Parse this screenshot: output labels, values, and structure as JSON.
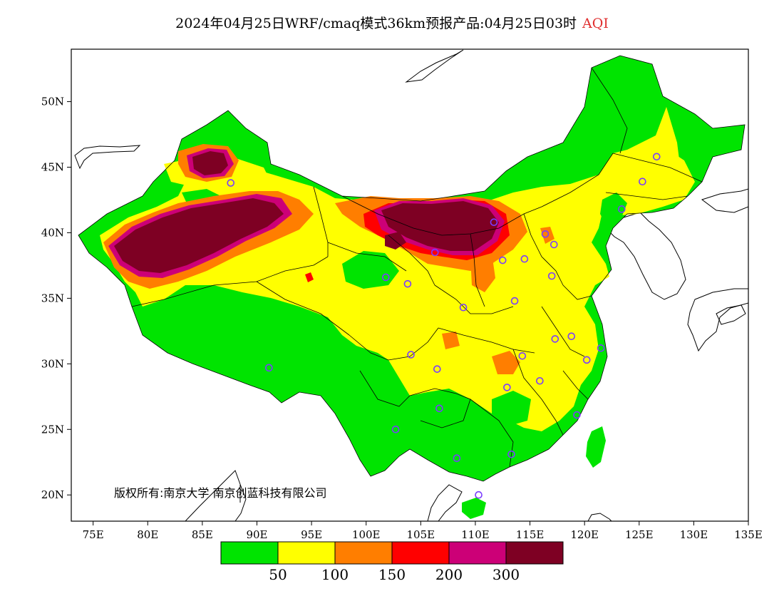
{
  "title": {
    "main": "2024年04月25日WRF/cmaq模式36km预报产品:04月25日03时",
    "variable": "AQI"
  },
  "map": {
    "lon_range": [
      73,
      135
    ],
    "lat_range": [
      18,
      54
    ],
    "lon_ticks": [
      {
        "value": 75,
        "label": "75E"
      },
      {
        "value": 80,
        "label": "80E"
      },
      {
        "value": 85,
        "label": "85E"
      },
      {
        "value": 90,
        "label": "90E"
      },
      {
        "value": 95,
        "label": "95E"
      },
      {
        "value": 100,
        "label": "100E"
      },
      {
        "value": 105,
        "label": "105E"
      },
      {
        "value": 110,
        "label": "110E"
      },
      {
        "value": 115,
        "label": "115E"
      },
      {
        "value": 120,
        "label": "120E"
      },
      {
        "value": 125,
        "label": "125E"
      },
      {
        "value": 130,
        "label": "130E"
      },
      {
        "value": 135,
        "label": "135E"
      }
    ],
    "lat_ticks": [
      {
        "value": 20,
        "label": "20N"
      },
      {
        "value": 25,
        "label": "25N"
      },
      {
        "value": 30,
        "label": "30N"
      },
      {
        "value": 35,
        "label": "35N"
      },
      {
        "value": 40,
        "label": "40N"
      },
      {
        "value": 45,
        "label": "45N"
      },
      {
        "value": 50,
        "label": "50N"
      }
    ],
    "copyright": "版权所有:南京大学 南京创蓝科技有限公司"
  },
  "legend": {
    "colors": [
      "#00e400",
      "#ffff00",
      "#ff7e00",
      "#ff0000",
      "#cc0077",
      "#7e0023"
    ],
    "labels": [
      "50",
      "100",
      "150",
      "200",
      "300"
    ]
  },
  "colors": {
    "good": "#00e400",
    "moderate": "#ffff00",
    "usg": "#ff7e00",
    "unhealthy": "#ff0000",
    "very_unhealthy": "#cc0077",
    "hazardous": "#7e0023",
    "city_marker": "#7a3cff"
  },
  "cities": [
    {
      "lon": 126.6,
      "lat": 45.8
    },
    {
      "lon": 125.3,
      "lat": 43.9
    },
    {
      "lon": 123.4,
      "lat": 41.8
    },
    {
      "lon": 116.4,
      "lat": 39.9
    },
    {
      "lon": 117.2,
      "lat": 39.1
    },
    {
      "lon": 114.5,
      "lat": 38.0
    },
    {
      "lon": 112.5,
      "lat": 37.9
    },
    {
      "lon": 111.7,
      "lat": 40.8
    },
    {
      "lon": 117.0,
      "lat": 36.7
    },
    {
      "lon": 113.6,
      "lat": 34.8
    },
    {
      "lon": 108.9,
      "lat": 34.3
    },
    {
      "lon": 103.8,
      "lat": 36.1
    },
    {
      "lon": 101.8,
      "lat": 36.6
    },
    {
      "lon": 106.3,
      "lat": 38.5
    },
    {
      "lon": 87.6,
      "lat": 43.8
    },
    {
      "lon": 91.1,
      "lat": 29.7
    },
    {
      "lon": 104.1,
      "lat": 30.7
    },
    {
      "lon": 106.5,
      "lat": 29.6
    },
    {
      "lon": 114.3,
      "lat": 30.6
    },
    {
      "lon": 112.9,
      "lat": 28.2
    },
    {
      "lon": 115.9,
      "lat": 28.7
    },
    {
      "lon": 117.3,
      "lat": 31.9
    },
    {
      "lon": 118.8,
      "lat": 32.1
    },
    {
      "lon": 121.5,
      "lat": 31.2
    },
    {
      "lon": 120.2,
      "lat": 30.3
    },
    {
      "lon": 119.3,
      "lat": 26.1
    },
    {
      "lon": 113.3,
      "lat": 23.1
    },
    {
      "lon": 108.3,
      "lat": 22.8
    },
    {
      "lon": 106.7,
      "lat": 26.6
    },
    {
      "lon": 102.7,
      "lat": 25.0
    },
    {
      "lon": 110.3,
      "lat": 20.0
    }
  ]
}
